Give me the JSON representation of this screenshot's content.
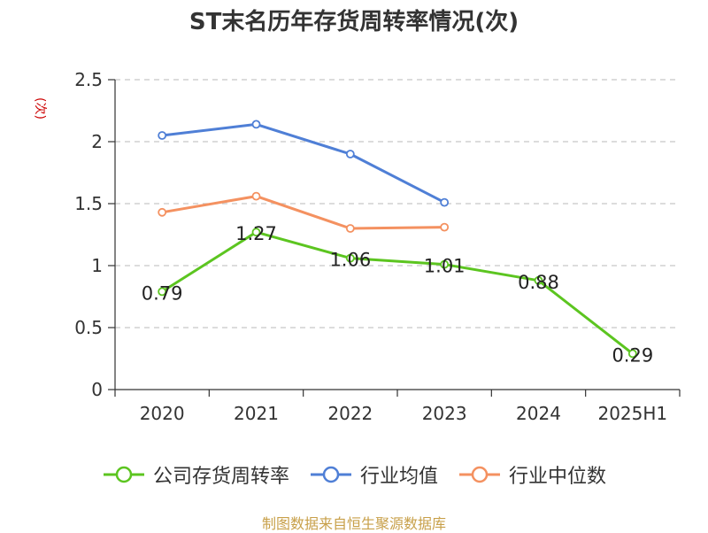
{
  "chart_data": {
    "type": "line",
    "title": "ST末名历年存货周转率情况(次)",
    "unit_label": "(次)",
    "categories": [
      "2020",
      "2021",
      "2022",
      "2023",
      "2024",
      "2025H1"
    ],
    "ylim": [
      0,
      2.5
    ],
    "yticks": [
      "0",
      "0.5",
      "1",
      "1.5",
      "2",
      "2.5"
    ],
    "grid": true,
    "legend_position": "bottom",
    "series": [
      {
        "name": "公司存货周转率",
        "color": "#5cc520",
        "values": [
          0.79,
          1.27,
          1.06,
          1.01,
          0.88,
          0.29
        ],
        "labels": [
          "0.79",
          "1.27",
          "1.06",
          "1.01",
          "0.88",
          "0.29"
        ]
      },
      {
        "name": "行业均值",
        "color": "#4f7fd6",
        "values": [
          2.05,
          2.14,
          1.9,
          1.51,
          null,
          null
        ]
      },
      {
        "name": "行业中位数",
        "color": "#f49160",
        "values": [
          1.43,
          1.56,
          1.3,
          1.31,
          null,
          null
        ]
      }
    ]
  },
  "source": "制图数据来自恒生聚源数据库"
}
